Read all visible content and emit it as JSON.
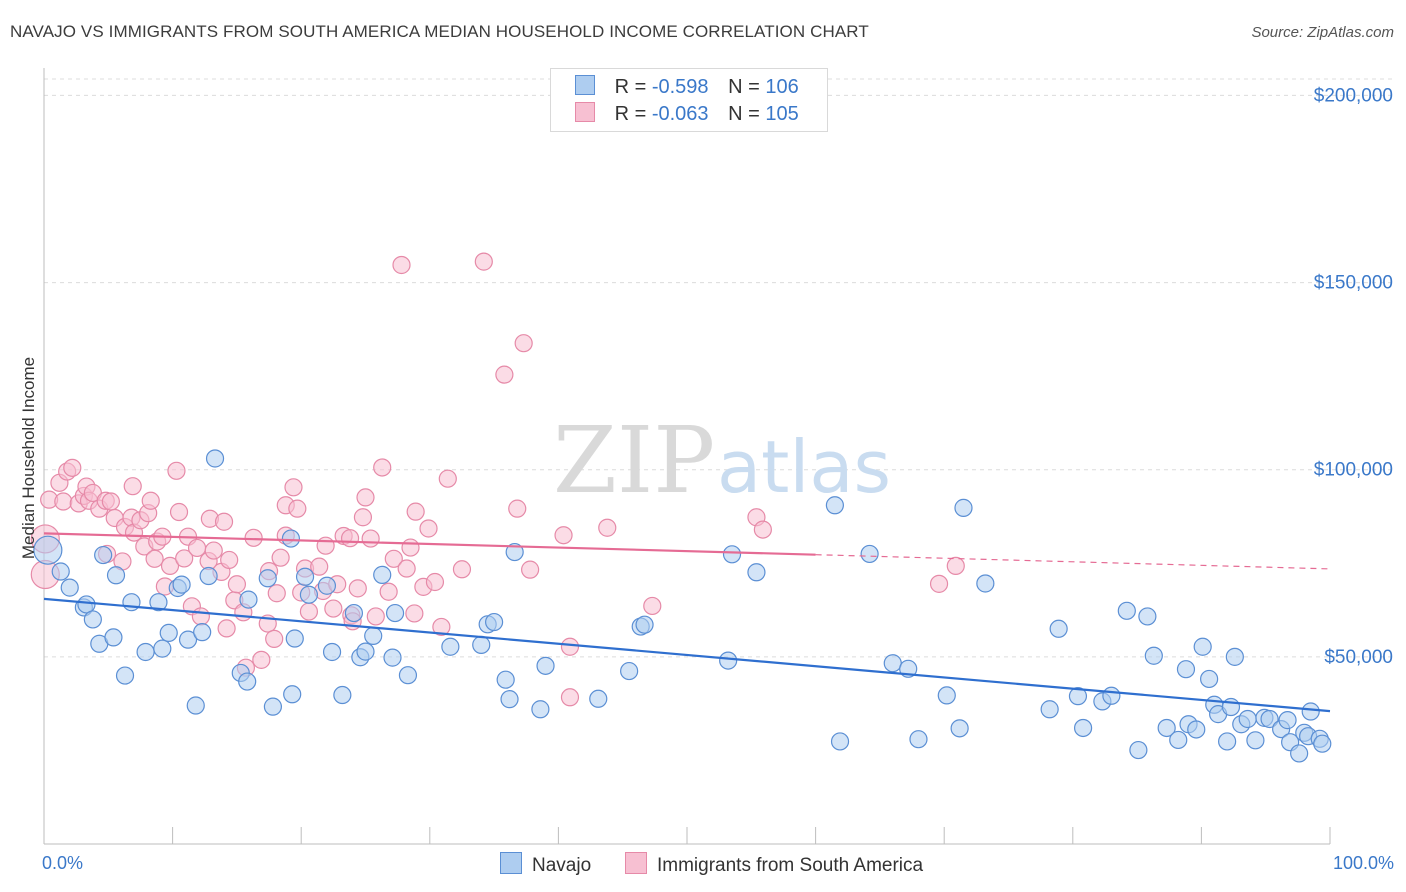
{
  "title": "NAVAJO VS IMMIGRANTS FROM SOUTH AMERICA MEDIAN HOUSEHOLD INCOME CORRELATION CHART",
  "source": "Source: ZipAtlas.com",
  "watermark": {
    "zip": "ZIP",
    "atlas": "atlas"
  },
  "legend_top": [
    {
      "r_label": "R =",
      "r_value": "-0.598",
      "n_label": "N =",
      "n_value": "106"
    },
    {
      "r_label": "R =",
      "r_value": "-0.063",
      "n_label": "N =",
      "n_value": "105"
    }
  ],
  "legend_bottom": [
    "Navajo",
    "Immigrants from South America"
  ],
  "colors": {
    "navajo_fill": "#aecdf0",
    "navajo_stroke": "#5b8fd4",
    "navajo_line": "#2f6fcf",
    "immig_fill": "#f7c0d2",
    "immig_stroke": "#e68aa8",
    "immig_line": "#e56b94",
    "axis_text": "#3a78c9",
    "grid": "#dcdcdc"
  },
  "chart_data": {
    "type": "scatter",
    "title": "NAVAJO VS IMMIGRANTS FROM SOUTH AMERICA MEDIAN HOUSEHOLD INCOME CORRELATION CHART",
    "xlabel": "",
    "ylabel": "Median Household Income",
    "xlim": [
      0,
      100
    ],
    "ylim": [
      0,
      210000
    ],
    "x_tick_labels": [
      "0.0%",
      "100.0%"
    ],
    "y_ticks": [
      50000,
      100000,
      150000,
      200000
    ],
    "y_tick_labels": [
      "$50,000",
      "$100,000",
      "$150,000",
      "$200,000"
    ],
    "series": [
      {
        "name": "Navajo",
        "r": -0.598,
        "n": 106,
        "trend": {
          "x0": 0,
          "y0": 65500,
          "x1": 100,
          "y1": 35500,
          "solid_to": 100
        },
        "points": [
          [
            0.3,
            78500
          ],
          [
            1.3,
            72800
          ],
          [
            2.0,
            68500
          ],
          [
            3.1,
            63200
          ],
          [
            3.3,
            64000
          ],
          [
            3.8,
            60000
          ],
          [
            4.3,
            53500
          ],
          [
            4.6,
            77200
          ],
          [
            5.4,
            55200
          ],
          [
            5.6,
            71800
          ],
          [
            6.3,
            45000
          ],
          [
            6.8,
            64600
          ],
          [
            7.9,
            51300
          ],
          [
            8.9,
            64600
          ],
          [
            9.2,
            52200
          ],
          [
            9.7,
            56400
          ],
          [
            10.4,
            68400
          ],
          [
            10.7,
            69300
          ],
          [
            11.2,
            54600
          ],
          [
            11.8,
            37000
          ],
          [
            12.3,
            56600
          ],
          [
            12.8,
            71600
          ],
          [
            13.3,
            103000
          ],
          [
            15.3,
            45700
          ],
          [
            15.8,
            43400
          ],
          [
            15.9,
            65300
          ],
          [
            17.4,
            71000
          ],
          [
            17.8,
            36700
          ],
          [
            19.2,
            81600
          ],
          [
            19.3,
            40000
          ],
          [
            19.5,
            54900
          ],
          [
            20.3,
            71400
          ],
          [
            20.6,
            66600
          ],
          [
            22.0,
            69000
          ],
          [
            22.4,
            51300
          ],
          [
            23.2,
            39800
          ],
          [
            24.1,
            61700
          ],
          [
            24.6,
            49900
          ],
          [
            25.0,
            51400
          ],
          [
            25.6,
            55600
          ],
          [
            26.3,
            71900
          ],
          [
            27.1,
            49800
          ],
          [
            27.3,
            61700
          ],
          [
            28.3,
            45100
          ],
          [
            31.6,
            52700
          ],
          [
            34.0,
            53200
          ],
          [
            34.5,
            58700
          ],
          [
            35.0,
            59300
          ],
          [
            35.9,
            43900
          ],
          [
            36.2,
            38700
          ],
          [
            36.6,
            78000
          ],
          [
            38.6,
            36000
          ],
          [
            39.0,
            47600
          ],
          [
            43.1,
            38800
          ],
          [
            45.5,
            46200
          ],
          [
            46.4,
            58100
          ],
          [
            46.7,
            58600
          ],
          [
            53.2,
            49000
          ],
          [
            53.5,
            77400
          ],
          [
            55.4,
            72600
          ],
          [
            61.5,
            90500
          ],
          [
            61.9,
            27400
          ],
          [
            64.2,
            77500
          ],
          [
            66.0,
            48300
          ],
          [
            67.2,
            46800
          ],
          [
            68.0,
            28000
          ],
          [
            70.2,
            39700
          ],
          [
            71.2,
            30900
          ],
          [
            71.5,
            89800
          ],
          [
            73.2,
            69600
          ],
          [
            78.2,
            36000
          ],
          [
            78.9,
            57500
          ],
          [
            80.4,
            39500
          ],
          [
            80.8,
            31000
          ],
          [
            82.3,
            38100
          ],
          [
            83.0,
            39600
          ],
          [
            84.2,
            62300
          ],
          [
            85.1,
            25100
          ],
          [
            85.8,
            60800
          ],
          [
            86.3,
            50300
          ],
          [
            87.3,
            31000
          ],
          [
            88.2,
            27800
          ],
          [
            88.8,
            46700
          ],
          [
            89.0,
            32000
          ],
          [
            89.6,
            30600
          ],
          [
            90.1,
            52700
          ],
          [
            90.6,
            44100
          ],
          [
            91.0,
            37200
          ],
          [
            91.3,
            34700
          ],
          [
            92.0,
            27400
          ],
          [
            92.3,
            36600
          ],
          [
            92.6,
            50000
          ],
          [
            93.1,
            32000
          ],
          [
            93.6,
            33400
          ],
          [
            94.2,
            27700
          ],
          [
            94.9,
            33700
          ],
          [
            95.3,
            33400
          ],
          [
            96.2,
            30700
          ],
          [
            96.7,
            33100
          ],
          [
            96.9,
            27200
          ],
          [
            97.6,
            24200
          ],
          [
            98.0,
            29700
          ],
          [
            98.3,
            28800
          ],
          [
            98.5,
            35400
          ],
          [
            99.2,
            28100
          ],
          [
            99.4,
            26800
          ]
        ]
      },
      {
        "name": "Immigrants from South America",
        "r": -0.063,
        "n": 105,
        "trend": {
          "x0": 0,
          "y0": 83000,
          "x1": 100,
          "y1": 73500,
          "solid_to": 60
        },
        "points": [
          [
            0.1,
            81500
          ],
          [
            0.1,
            72000
          ],
          [
            0.4,
            92000
          ],
          [
            1.2,
            96500
          ],
          [
            1.5,
            91500
          ],
          [
            1.8,
            99500
          ],
          [
            2.2,
            100500
          ],
          [
            2.7,
            91000
          ],
          [
            3.1,
            93000
          ],
          [
            3.3,
            95500
          ],
          [
            3.5,
            91700
          ],
          [
            3.8,
            93800
          ],
          [
            4.3,
            89600
          ],
          [
            4.8,
            91700
          ],
          [
            4.9,
            77500
          ],
          [
            5.2,
            91500
          ],
          [
            5.5,
            87100
          ],
          [
            6.1,
            75500
          ],
          [
            6.3,
            84700
          ],
          [
            6.8,
            87200
          ],
          [
            6.9,
            95600
          ],
          [
            7.0,
            83200
          ],
          [
            7.5,
            86500
          ],
          [
            7.8,
            79500
          ],
          [
            8.1,
            88400
          ],
          [
            8.3,
            91700
          ],
          [
            8.6,
            76200
          ],
          [
            8.8,
            80800
          ],
          [
            9.2,
            82100
          ],
          [
            9.4,
            68800
          ],
          [
            9.8,
            74300
          ],
          [
            10.3,
            99700
          ],
          [
            10.5,
            88700
          ],
          [
            10.9,
            76300
          ],
          [
            11.2,
            82100
          ],
          [
            11.5,
            63500
          ],
          [
            11.9,
            79100
          ],
          [
            12.2,
            60800
          ],
          [
            12.8,
            75600
          ],
          [
            12.9,
            86900
          ],
          [
            13.2,
            78400
          ],
          [
            13.8,
            72700
          ],
          [
            14.0,
            86100
          ],
          [
            14.2,
            57600
          ],
          [
            14.4,
            75900
          ],
          [
            14.8,
            65100
          ],
          [
            15.0,
            69400
          ],
          [
            15.5,
            61900
          ],
          [
            15.7,
            47100
          ],
          [
            16.3,
            81800
          ],
          [
            16.9,
            49200
          ],
          [
            17.4,
            58900
          ],
          [
            17.5,
            72900
          ],
          [
            17.9,
            54800
          ],
          [
            18.1,
            67000
          ],
          [
            18.4,
            76500
          ],
          [
            18.8,
            90500
          ],
          [
            18.8,
            82400
          ],
          [
            19.4,
            95300
          ],
          [
            19.7,
            89600
          ],
          [
            20.0,
            67200
          ],
          [
            20.3,
            73600
          ],
          [
            20.6,
            62100
          ],
          [
            21.4,
            74100
          ],
          [
            21.7,
            67600
          ],
          [
            21.9,
            79700
          ],
          [
            22.5,
            62900
          ],
          [
            22.8,
            69400
          ],
          [
            23.3,
            82300
          ],
          [
            23.8,
            81700
          ],
          [
            23.9,
            61100
          ],
          [
            24.0,
            59500
          ],
          [
            24.4,
            68300
          ],
          [
            24.8,
            87300
          ],
          [
            25.0,
            92600
          ],
          [
            25.4,
            81600
          ],
          [
            25.8,
            60800
          ],
          [
            26.3,
            100600
          ],
          [
            26.8,
            67400
          ],
          [
            27.2,
            76200
          ],
          [
            27.8,
            154700
          ],
          [
            28.2,
            73600
          ],
          [
            28.5,
            79200
          ],
          [
            28.8,
            61600
          ],
          [
            28.9,
            88800
          ],
          [
            29.5,
            68700
          ],
          [
            29.9,
            84300
          ],
          [
            30.4,
            70000
          ],
          [
            30.9,
            58000
          ],
          [
            31.4,
            97600
          ],
          [
            32.5,
            73400
          ],
          [
            34.2,
            155600
          ],
          [
            35.8,
            125400
          ],
          [
            36.8,
            89600
          ],
          [
            37.3,
            133800
          ],
          [
            37.8,
            73300
          ],
          [
            40.4,
            82500
          ],
          [
            40.9,
            52700
          ],
          [
            40.9,
            39200
          ],
          [
            43.8,
            84500
          ],
          [
            47.3,
            63600
          ],
          [
            55.4,
            87300
          ],
          [
            55.9,
            84000
          ],
          [
            69.6,
            69500
          ],
          [
            70.9,
            74300
          ]
        ]
      }
    ]
  }
}
